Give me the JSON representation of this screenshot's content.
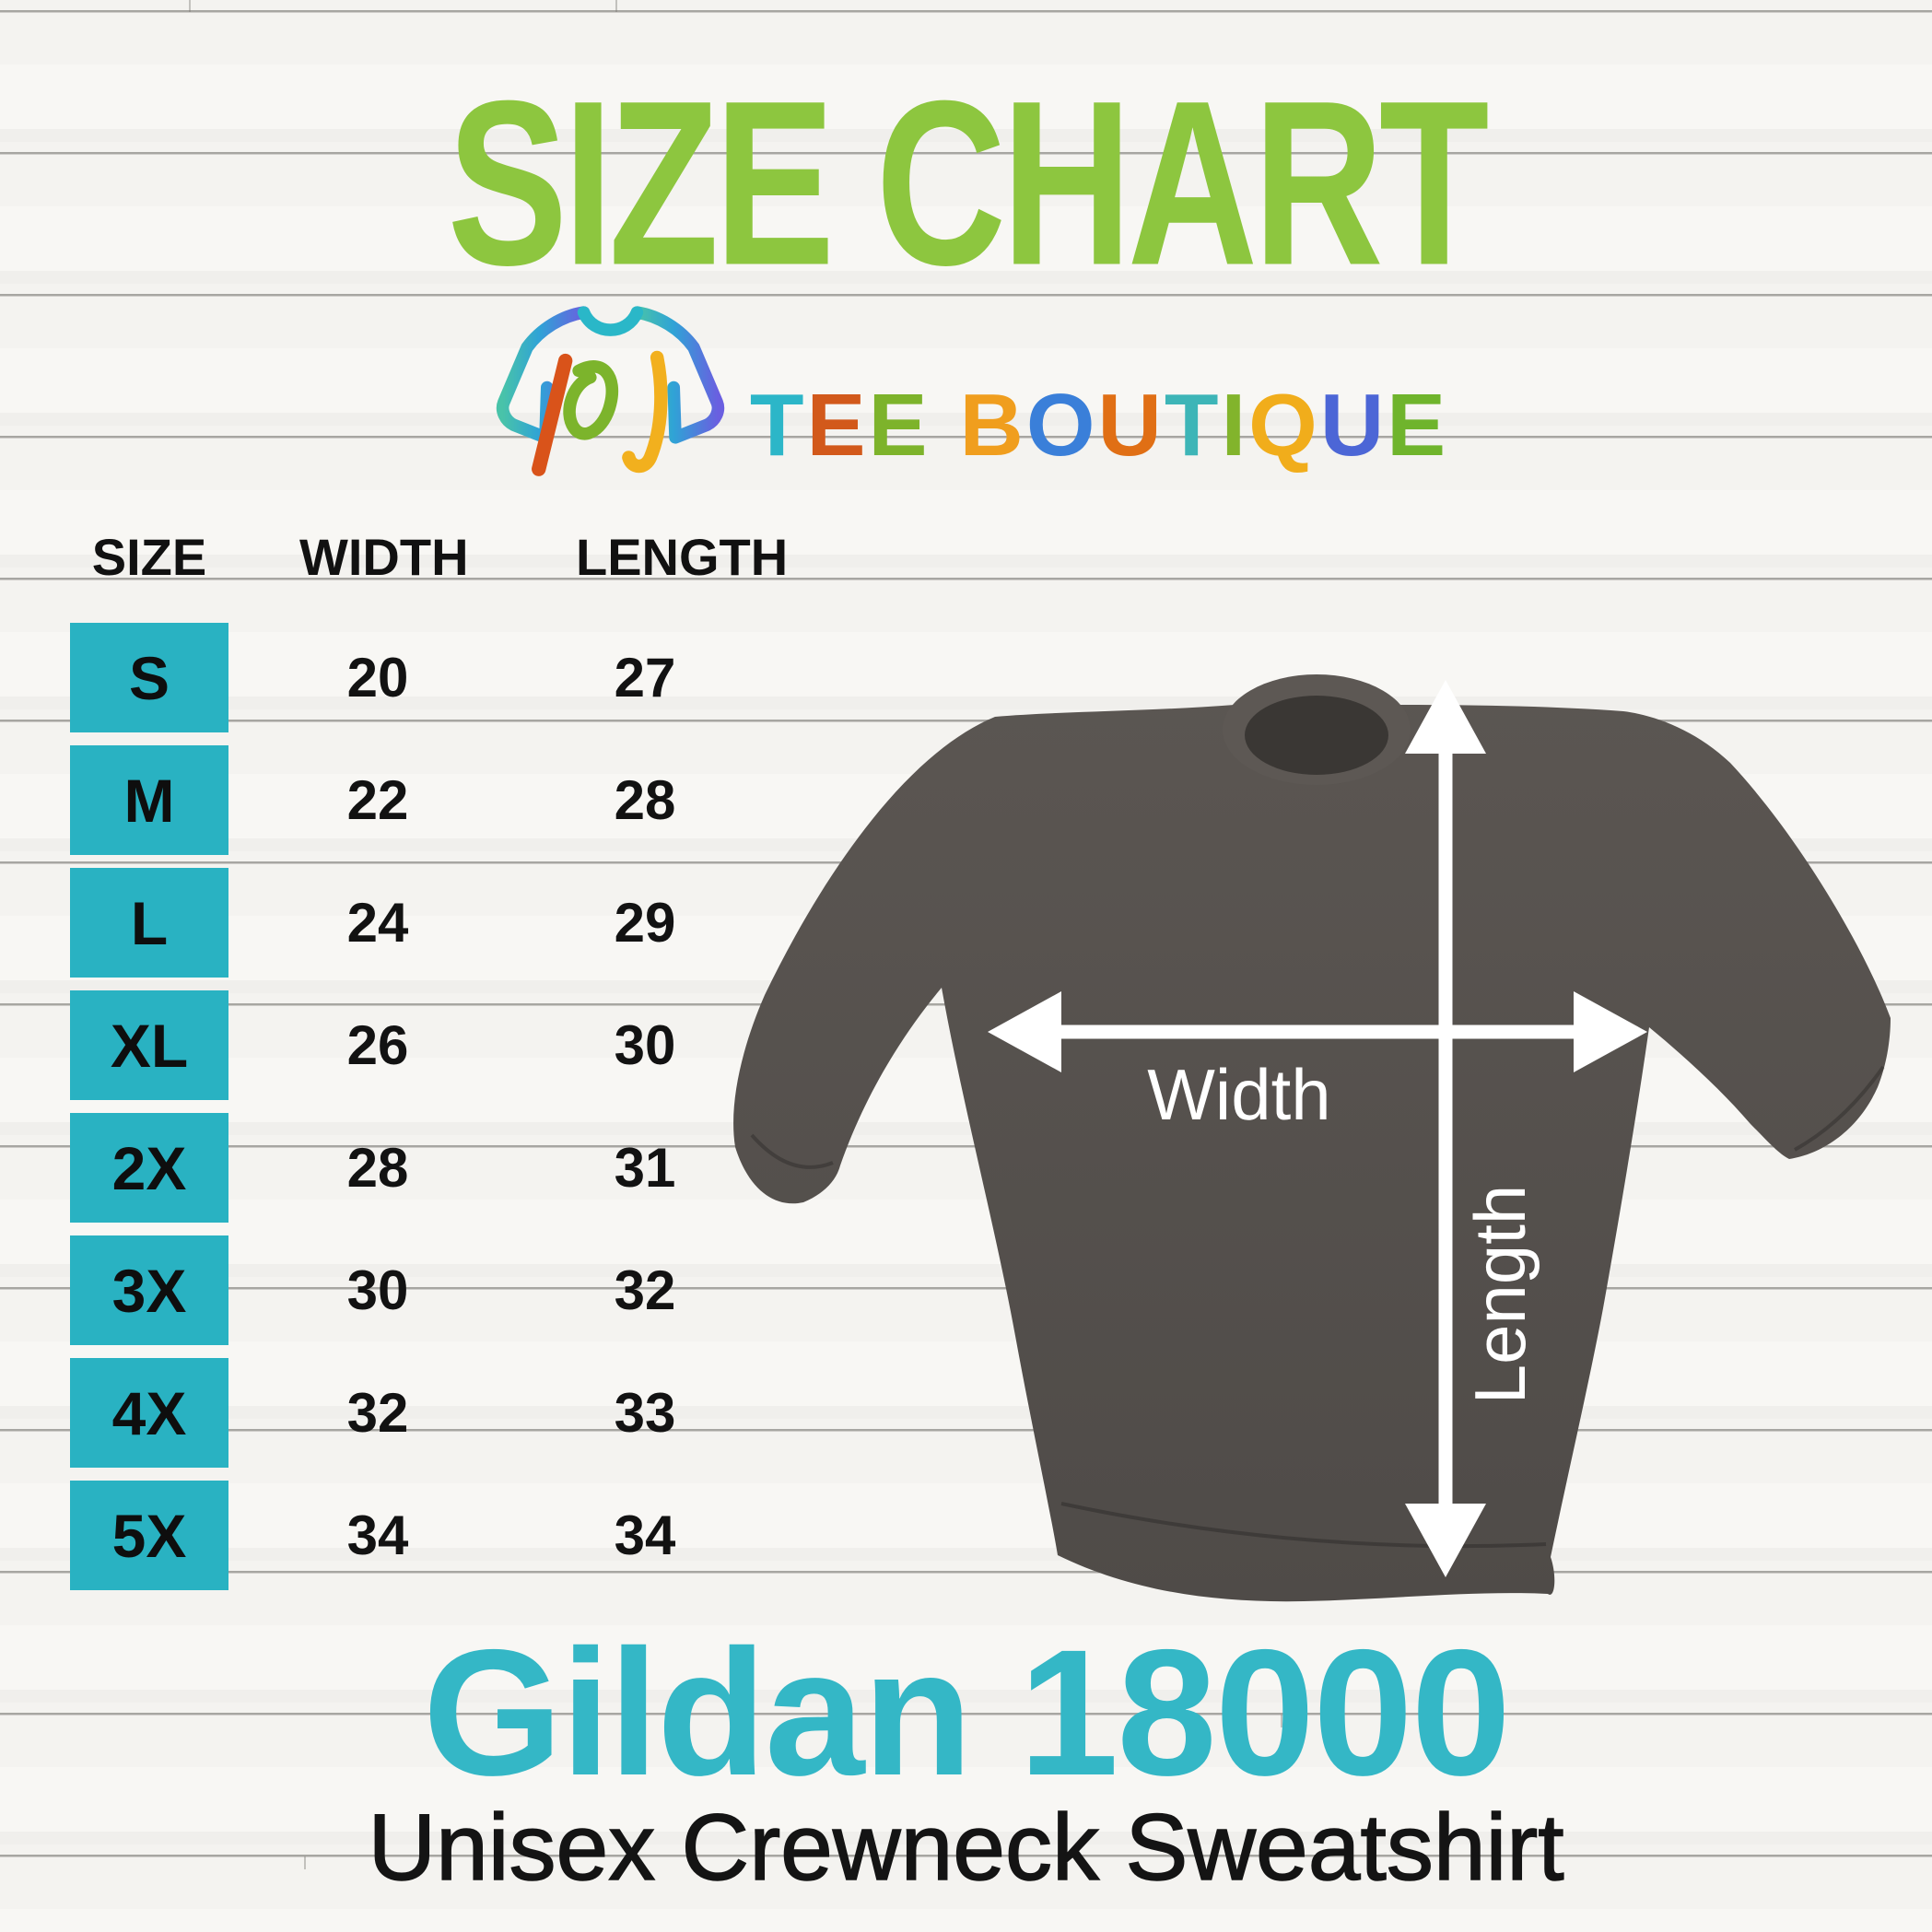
{
  "title": {
    "text": "SIZE CHART",
    "color": "#8dc63f"
  },
  "brand": {
    "name": "TEE BOUTIQUE",
    "icon": "tee-boutique-shirt-logo",
    "letters": [
      {
        "ch": "T",
        "color": "#2cb6c8"
      },
      {
        "ch": "E",
        "color": "#d2591b"
      },
      {
        "ch": "E",
        "color": "#7db32b"
      },
      {
        "ch": " "
      },
      {
        "ch": "B",
        "color": "#f09e1e"
      },
      {
        "ch": "O",
        "color": "#3a7fd9"
      },
      {
        "ch": "U",
        "color": "#e06f15"
      },
      {
        "ch": "T",
        "color": "#3db5b7"
      },
      {
        "ch": "I",
        "color": "#82b42c"
      },
      {
        "ch": "Q",
        "color": "#f1ad1b"
      },
      {
        "ch": "U",
        "color": "#4c66d6"
      },
      {
        "ch": "E",
        "color": "#6fb42c"
      }
    ]
  },
  "table": {
    "headers": [
      "SIZE",
      "WIDTH",
      "LENGTH"
    ],
    "size_box_color": "#29b2c2",
    "rows": [
      {
        "size": "S",
        "width": "20",
        "length": "27"
      },
      {
        "size": "M",
        "width": "22",
        "length": "28"
      },
      {
        "size": "L",
        "width": "24",
        "length": "29"
      },
      {
        "size": "XL",
        "width": "26",
        "length": "30"
      },
      {
        "size": "2X",
        "width": "28",
        "length": "31"
      },
      {
        "size": "3X",
        "width": "30",
        "length": "32"
      },
      {
        "size": "4X",
        "width": "32",
        "length": "33"
      },
      {
        "size": "5X",
        "width": "34",
        "length": "34"
      }
    ]
  },
  "diagram": {
    "width_label": "Width",
    "length_label": "Length",
    "garment_color": "#55504c",
    "arrow_color": "#ffffff"
  },
  "product": {
    "name": "Gildan 18000",
    "name_color": "#34b7c6",
    "subtitle": "Unisex Crewneck Sweatshirt"
  }
}
